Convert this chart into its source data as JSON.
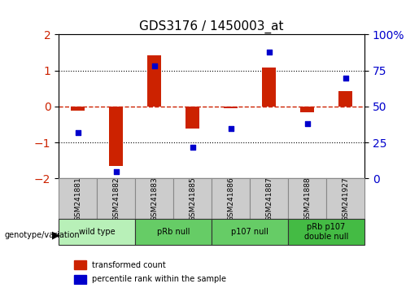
{
  "title": "GDS3176 / 1450003_at",
  "samples": [
    "GSM241881",
    "GSM241882",
    "GSM241883",
    "GSM241885",
    "GSM241886",
    "GSM241887",
    "GSM241888",
    "GSM241927"
  ],
  "red_bars": [
    -0.12,
    -1.65,
    1.42,
    -0.62,
    -0.05,
    1.08,
    -0.15,
    0.42
  ],
  "blue_dots": [
    -0.72,
    -1.78,
    1.55,
    -1.02,
    -0.38,
    1.65,
    -0.28,
    0.72
  ],
  "blue_dot_percentiles": [
    32,
    5,
    78,
    22,
    35,
    88,
    38,
    70
  ],
  "ylim_left": [
    -2,
    2
  ],
  "ylim_right": [
    0,
    100
  ],
  "yticks_left": [
    -2,
    -1,
    0,
    1,
    2
  ],
  "yticks_right": [
    0,
    25,
    50,
    75,
    100
  ],
  "groups": [
    {
      "label": "wild type",
      "samples": [
        0,
        1
      ],
      "color": "#ccffcc"
    },
    {
      "label": "pRb null",
      "samples": [
        2,
        3
      ],
      "color": "#66dd66"
    },
    {
      "label": "p107 null",
      "samples": [
        4,
        5
      ],
      "color": "#66dd66"
    },
    {
      "label": "pRb p107\ndouble null",
      "samples": [
        6,
        7
      ],
      "color": "#33cc33"
    }
  ],
  "group_colors": [
    "#ccffcc",
    "#66dd66",
    "#66dd66",
    "#33cc33"
  ],
  "bar_color": "#cc2200",
  "dot_color": "#0000cc",
  "zero_line_color": "#cc2200",
  "grid_color": "#000000",
  "background_chart": "#ffffff",
  "background_label": "#cccccc"
}
